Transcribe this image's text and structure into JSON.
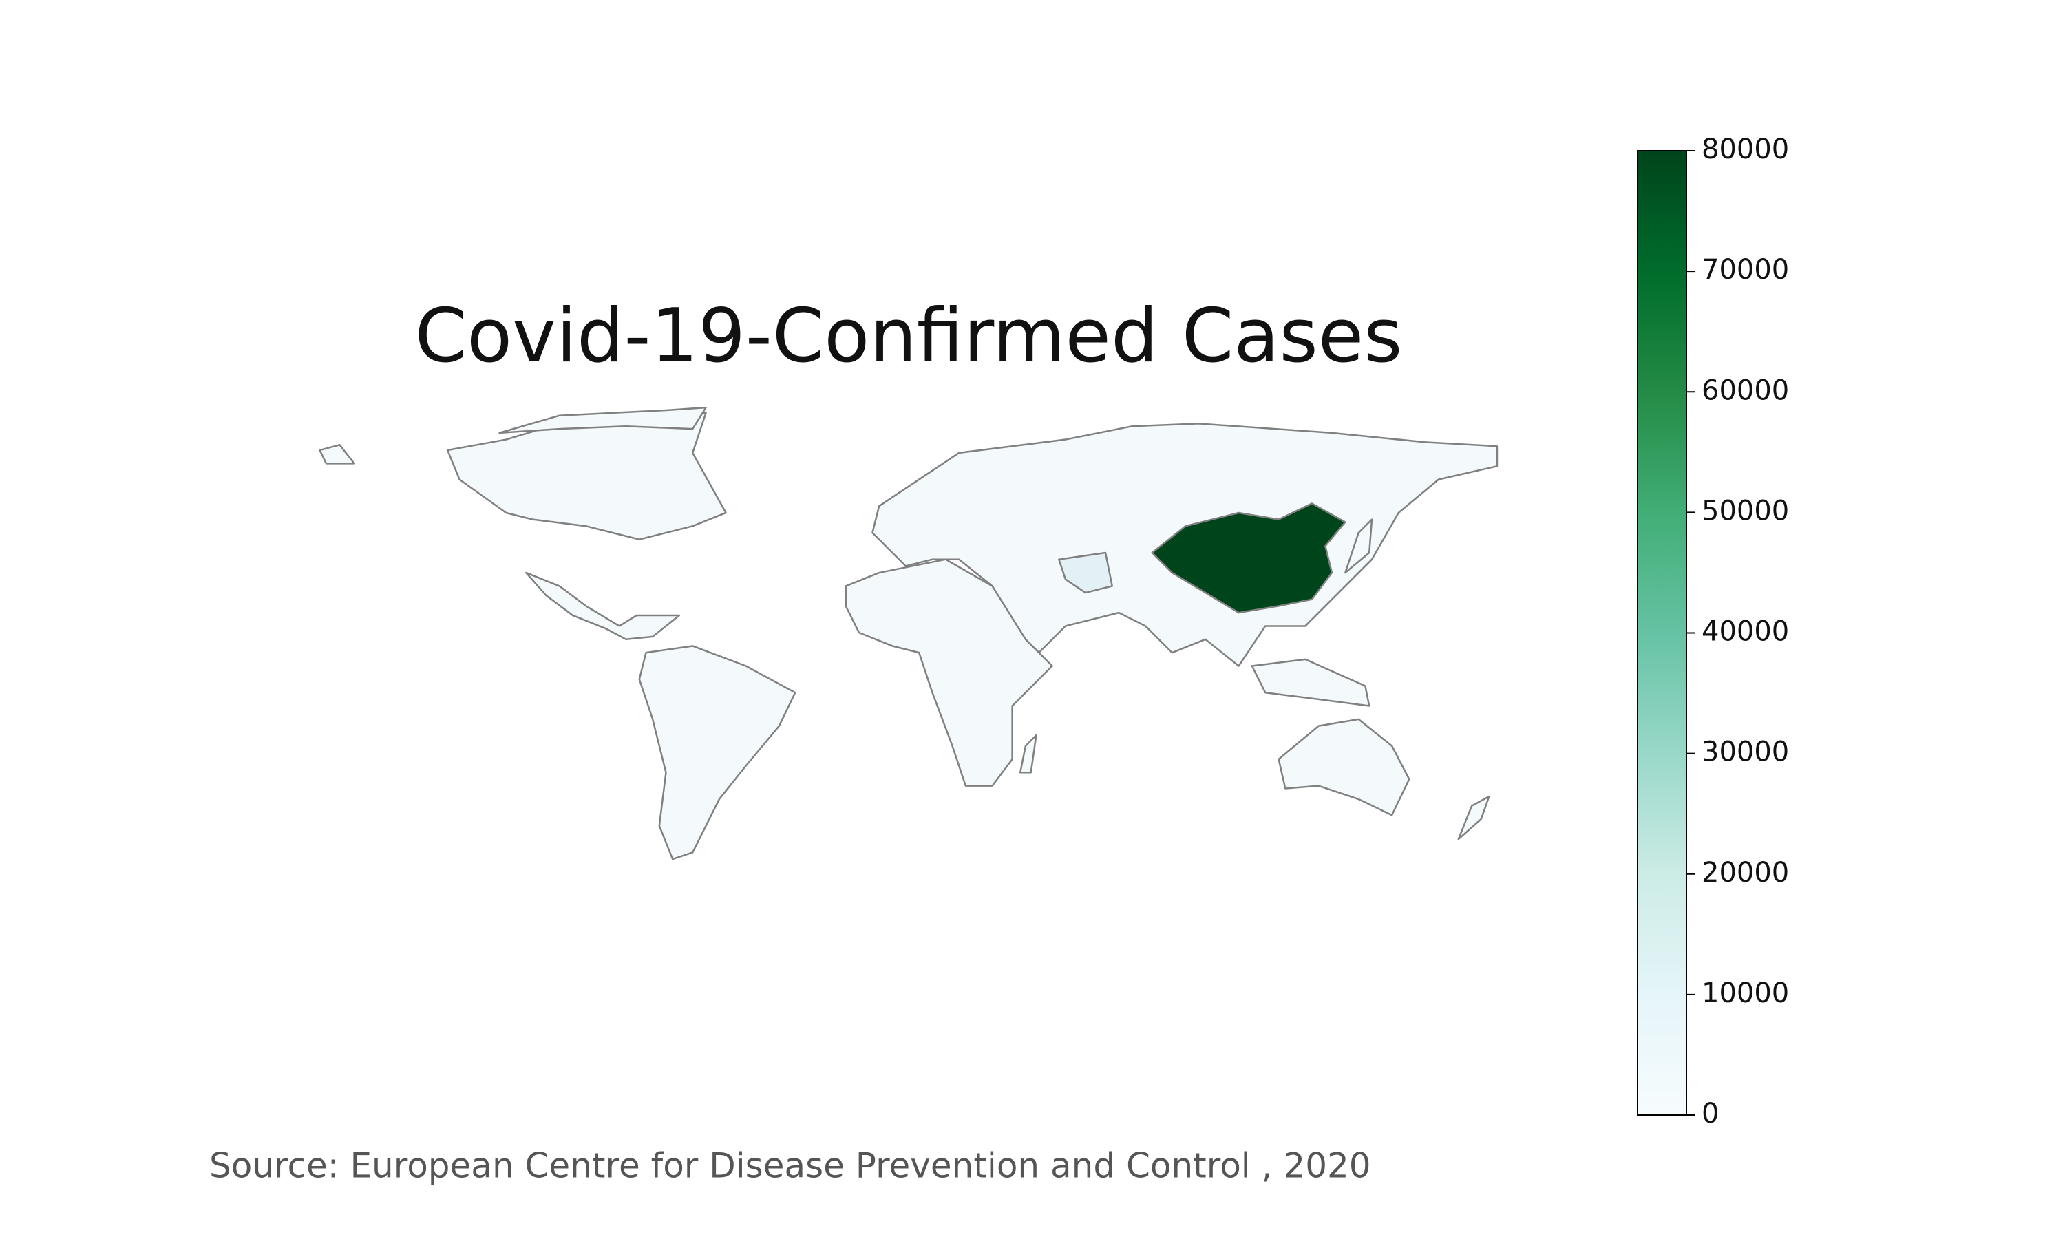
{
  "title": "Covid-19-Confirmed Cases",
  "source": "Source: European Centre for Disease Prevention and Control , 2020",
  "colorbar": {
    "clim": [
      0,
      80000
    ],
    "ticks": [
      0,
      10000,
      20000,
      30000,
      40000,
      50000,
      60000,
      70000,
      80000
    ],
    "colormap": [
      "#f7fcfd",
      "#e5f5f9",
      "#ccece6",
      "#99d8c9",
      "#66c2a4",
      "#41ae76",
      "#238b45",
      "#006d2c",
      "#00441b"
    ]
  }
}
